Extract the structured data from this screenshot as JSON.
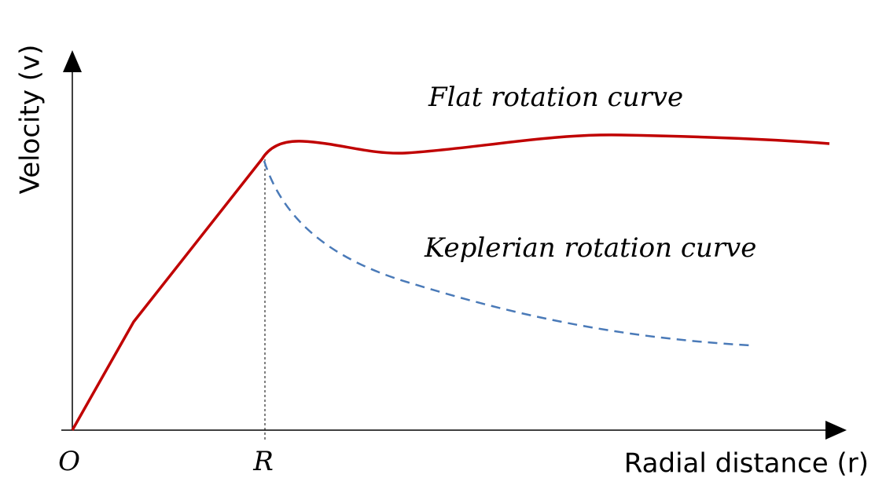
{
  "y_axis": {
    "label": "Velocity (v)"
  },
  "x_axis": {
    "label": "Radial distance (r)",
    "origin": "O",
    "marker": "R"
  },
  "curves": [
    {
      "label": "Flat rotation curve"
    },
    {
      "label": "Keplerian rotation curve"
    }
  ]
}
